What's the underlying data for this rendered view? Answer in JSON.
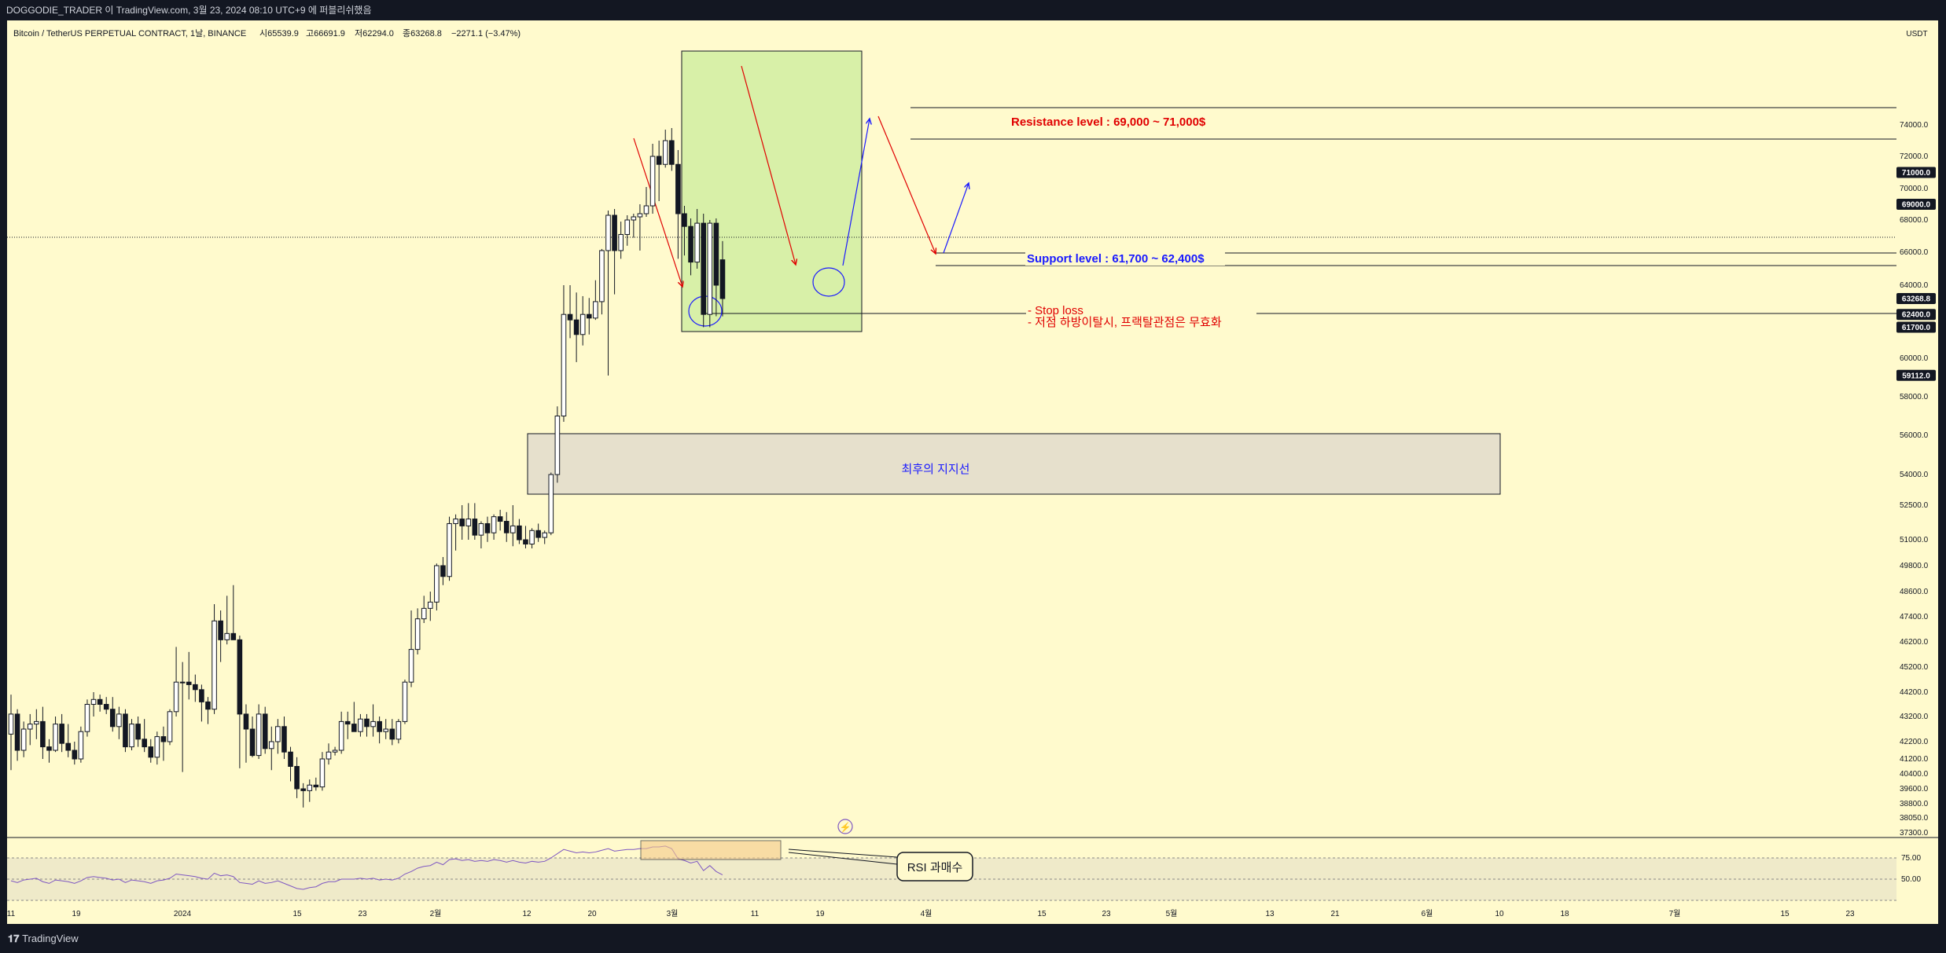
{
  "header": {
    "publish_text": "DOGGODIE_TRADER 이 TradingView.com, 3월 23, 2024 08:10 UTC+9 에 퍼블리쉬했음"
  },
  "legend": {
    "symbol": "Bitcoin / TetherUS PERPETUAL CONTRACT, 1날, BINANCE",
    "open": "시65539.9",
    "high": "고66691.9",
    "low": "저62294.0",
    "close": "종63268.8",
    "change": "−2271.1 (−3.47%)"
  },
  "footer": {
    "logo_text": "TradingView"
  },
  "colors": {
    "background": "#fffacd",
    "frame": "#131722",
    "candle_up_fill": "#ffffff",
    "candle_down_fill": "#131722",
    "highlight_green": "#d8f0a8",
    "zone_beige": "#e6e0cc",
    "resistance_text": "#e00000",
    "support_text": "#1a1aff",
    "rsi_line": "#7e57c2"
  },
  "chart_data": {
    "type": "candlestick",
    "currency_label": "USDT",
    "y_ticks": [
      "74000.0",
      "72000.0",
      "70000.0",
      "68000.0",
      "66000.0",
      "64000.0",
      "60000.0",
      "58000.0",
      "56000.0",
      "54000.0",
      "52500.0",
      "51000.0",
      "49800.0",
      "48600.0",
      "47400.0",
      "46200.0",
      "45200.0",
      "44200.0",
      "43200.0",
      "42200.0",
      "41200.0",
      "40400.0",
      "39600.0",
      "38800.0",
      "38050.0",
      "37300.0"
    ],
    "price_badges": [
      {
        "label": "71000.0",
        "value": 71000,
        "style": "level"
      },
      {
        "label": "69000.0",
        "value": 69000,
        "style": "level"
      },
      {
        "label": "63268.8",
        "value": 63268.8,
        "style": "last"
      },
      {
        "label": "62400.0",
        "value": 62400,
        "style": "level"
      },
      {
        "label": "61700.0",
        "value": 61700,
        "style": "level"
      },
      {
        "label": "59112.0",
        "value": 59112,
        "style": "level"
      }
    ],
    "x_ticks": [
      "11",
      "19",
      "2024",
      "15",
      "23",
      "2월",
      "12",
      "20",
      "3월",
      "11",
      "19",
      "4월",
      "15",
      "23",
      "5월",
      "13",
      "21",
      "6월",
      "10",
      "18",
      "7월",
      "15",
      "23"
    ],
    "candles_ohlc": [
      [
        42500,
        44100,
        40600,
        43300
      ],
      [
        43300,
        43500,
        41100,
        41700
      ],
      [
        41700,
        43000,
        41300,
        42700
      ],
      [
        42700,
        43300,
        42000,
        42900
      ],
      [
        42900,
        43500,
        42300,
        43000
      ],
      [
        43000,
        43600,
        41200,
        41900
      ],
      [
        41900,
        42300,
        41000,
        41700
      ],
      [
        41700,
        43200,
        41600,
        42900
      ],
      [
        42900,
        43300,
        41600,
        42100
      ],
      [
        42100,
        42900,
        41300,
        41700
      ],
      [
        41700,
        42200,
        40900,
        41200
      ],
      [
        41200,
        42800,
        41000,
        42600
      ],
      [
        42600,
        43900,
        42400,
        43700
      ],
      [
        43700,
        44200,
        43200,
        43900
      ],
      [
        43900,
        44100,
        43400,
        43700
      ],
      [
        43700,
        44000,
        43300,
        43500
      ],
      [
        43500,
        44000,
        42600,
        42800
      ],
      [
        42800,
        43600,
        42300,
        43300
      ],
      [
        43300,
        43500,
        41600,
        41900
      ],
      [
        41900,
        43100,
        41700,
        42900
      ],
      [
        42900,
        43200,
        41900,
        42300
      ],
      [
        42300,
        43100,
        41600,
        41900
      ],
      [
        41900,
        42300,
        41000,
        41300
      ],
      [
        41300,
        42600,
        40900,
        42400
      ],
      [
        42400,
        42800,
        41100,
        42200
      ],
      [
        42200,
        43500,
        42000,
        43400
      ],
      [
        43400,
        46000,
        43200,
        44600
      ],
      [
        44600,
        45400,
        40500,
        44600
      ],
      [
        44600,
        45800,
        43900,
        44500
      ],
      [
        44500,
        44900,
        43800,
        44300
      ],
      [
        44300,
        44500,
        43000,
        43800
      ],
      [
        43800,
        44000,
        42900,
        43500
      ],
      [
        43500,
        48000,
        43300,
        47200
      ],
      [
        47200,
        47700,
        45400,
        46300
      ],
      [
        46300,
        48400,
        46100,
        46600
      ],
      [
        46600,
        48900,
        46300,
        46300
      ],
      [
        46300,
        46500,
        40700,
        43300
      ],
      [
        43300,
        43700,
        41000,
        42700
      ],
      [
        42700,
        43200,
        41300,
        41400
      ],
      [
        41400,
        43700,
        41200,
        43300
      ],
      [
        43300,
        43600,
        41500,
        41800
      ],
      [
        41800,
        42800,
        40600,
        42200
      ],
      [
        42200,
        43100,
        41500,
        42800
      ],
      [
        42800,
        43200,
        41200,
        41600
      ],
      [
        41600,
        41900,
        40000,
        40800
      ],
      [
        40800,
        41300,
        39100,
        39600
      ],
      [
        39600,
        39900,
        38600,
        39500
      ],
      [
        39500,
        40100,
        38900,
        39800
      ],
      [
        39800,
        40200,
        39500,
        39700
      ],
      [
        39700,
        41600,
        39500,
        41200
      ],
      [
        41200,
        42100,
        40900,
        41600
      ],
      [
        41600,
        41900,
        41400,
        41700
      ],
      [
        41700,
        43400,
        41500,
        43000
      ],
      [
        43000,
        43400,
        42300,
        42900
      ],
      [
        42900,
        43800,
        42700,
        42600
      ],
      [
        42600,
        43300,
        42400,
        43100
      ],
      [
        43100,
        43300,
        42400,
        42800
      ],
      [
        42800,
        43700,
        42400,
        43000
      ],
      [
        43000,
        43200,
        42100,
        42600
      ],
      [
        42600,
        43100,
        42300,
        42700
      ],
      [
        42700,
        43100,
        42000,
        42300
      ],
      [
        42300,
        43100,
        42100,
        43000
      ],
      [
        43000,
        44700,
        42900,
        44600
      ],
      [
        44600,
        47700,
        44400,
        45900
      ],
      [
        45900,
        47800,
        45700,
        47300
      ],
      [
        47300,
        48400,
        47100,
        47800
      ],
      [
        47800,
        48600,
        47200,
        48100
      ],
      [
        48100,
        49900,
        47700,
        49800
      ],
      [
        49800,
        50200,
        48900,
        49300
      ],
      [
        49300,
        52000,
        49100,
        51700
      ],
      [
        51700,
        52100,
        50500,
        51900
      ],
      [
        51900,
        52500,
        51000,
        51600
      ],
      [
        51600,
        52600,
        51000,
        51900
      ],
      [
        51900,
        52600,
        51000,
        51200
      ],
      [
        51200,
        51800,
        50600,
        51700
      ],
      [
        51700,
        52000,
        50900,
        51300
      ],
      [
        51300,
        52100,
        51000,
        52000
      ],
      [
        52000,
        52300,
        51400,
        51800
      ],
      [
        51800,
        52200,
        50900,
        51300
      ],
      [
        51300,
        52500,
        50700,
        51600
      ],
      [
        51600,
        51900,
        50800,
        51000
      ],
      [
        51000,
        51600,
        50600,
        50800
      ],
      [
        50800,
        51500,
        50600,
        51400
      ],
      [
        51400,
        51700,
        50900,
        51100
      ],
      [
        51100,
        51400,
        50800,
        51300
      ],
      [
        51300,
        54100,
        51200,
        54000
      ],
      [
        54000,
        57500,
        53600,
        57000
      ],
      [
        57000,
        64000,
        56700,
        62400
      ],
      [
        62400,
        64000,
        61100,
        62100
      ],
      [
        62100,
        63600,
        59800,
        61300
      ],
      [
        61300,
        63400,
        60700,
        62400
      ],
      [
        62400,
        63300,
        61300,
        62200
      ],
      [
        62200,
        64300,
        62100,
        63100
      ],
      [
        63100,
        66200,
        62400,
        66100
      ],
      [
        66100,
        68600,
        59100,
        68300
      ],
      [
        68300,
        68700,
        63500,
        66100
      ],
      [
        66100,
        67900,
        65600,
        67100
      ],
      [
        67100,
        68300,
        66400,
        68000
      ],
      [
        68000,
        68400,
        66900,
        68200
      ],
      [
        68200,
        69000,
        66100,
        68400
      ],
      [
        68400,
        70100,
        68200,
        68900
      ],
      [
        68900,
        72800,
        68400,
        72000
      ],
      [
        72000,
        73000,
        69200,
        71500
      ],
      [
        71500,
        73700,
        71300,
        73000
      ],
      [
        73000,
        73800,
        71100,
        71500
      ],
      [
        71500,
        72400,
        65600,
        68400
      ],
      [
        68400,
        68900,
        65800,
        67600
      ],
      [
        67600,
        68100,
        64600,
        65400
      ],
      [
        65400,
        68700,
        65000,
        67800
      ],
      [
        67800,
        68400,
        61700,
        62400
      ],
      [
        62400,
        68000,
        61700,
        67800
      ],
      [
        67800,
        68100,
        62300,
        64000
      ],
      [
        65539.9,
        66691.9,
        62294.0,
        63268.8
      ]
    ],
    "rsi": {
      "levels": [
        "75.00",
        "50.00"
      ],
      "values": [
        48,
        46,
        49,
        50,
        51,
        47,
        45,
        49,
        48,
        47,
        45,
        48,
        52,
        53,
        52,
        51,
        49,
        50,
        46,
        49,
        48,
        47,
        45,
        48,
        49,
        51,
        56,
        55,
        54,
        53,
        51,
        50,
        57,
        54,
        55,
        53,
        46,
        45,
        44,
        48,
        45,
        46,
        48,
        45,
        42,
        39,
        38,
        40,
        41,
        45,
        47,
        47,
        50,
        50,
        50,
        51,
        50,
        51,
        49,
        50,
        49,
        51,
        56,
        59,
        63,
        65,
        66,
        70,
        67,
        73,
        74,
        72,
        73,
        71,
        72,
        71,
        73,
        72,
        70,
        72,
        70,
        69,
        71,
        70,
        71,
        75,
        80,
        85,
        83,
        81,
        82,
        81,
        82,
        84,
        86,
        83,
        84,
        85,
        85,
        86,
        86,
        88,
        88,
        89,
        86,
        74,
        72,
        69,
        71,
        60,
        66,
        59,
        55
      ]
    },
    "annotations": {
      "resistance": "Resistance level : 69,000 ~ 71,000$",
      "support": "Support level : 61,700 ~ 62,400$",
      "stop_loss_1": "- Stop loss",
      "stop_loss_2": "- 저점 하방이탈시, 프랙탈관점은 무효화",
      "zone_label": "최후의 지지선",
      "rsi_label": "RSI 과매수"
    }
  }
}
